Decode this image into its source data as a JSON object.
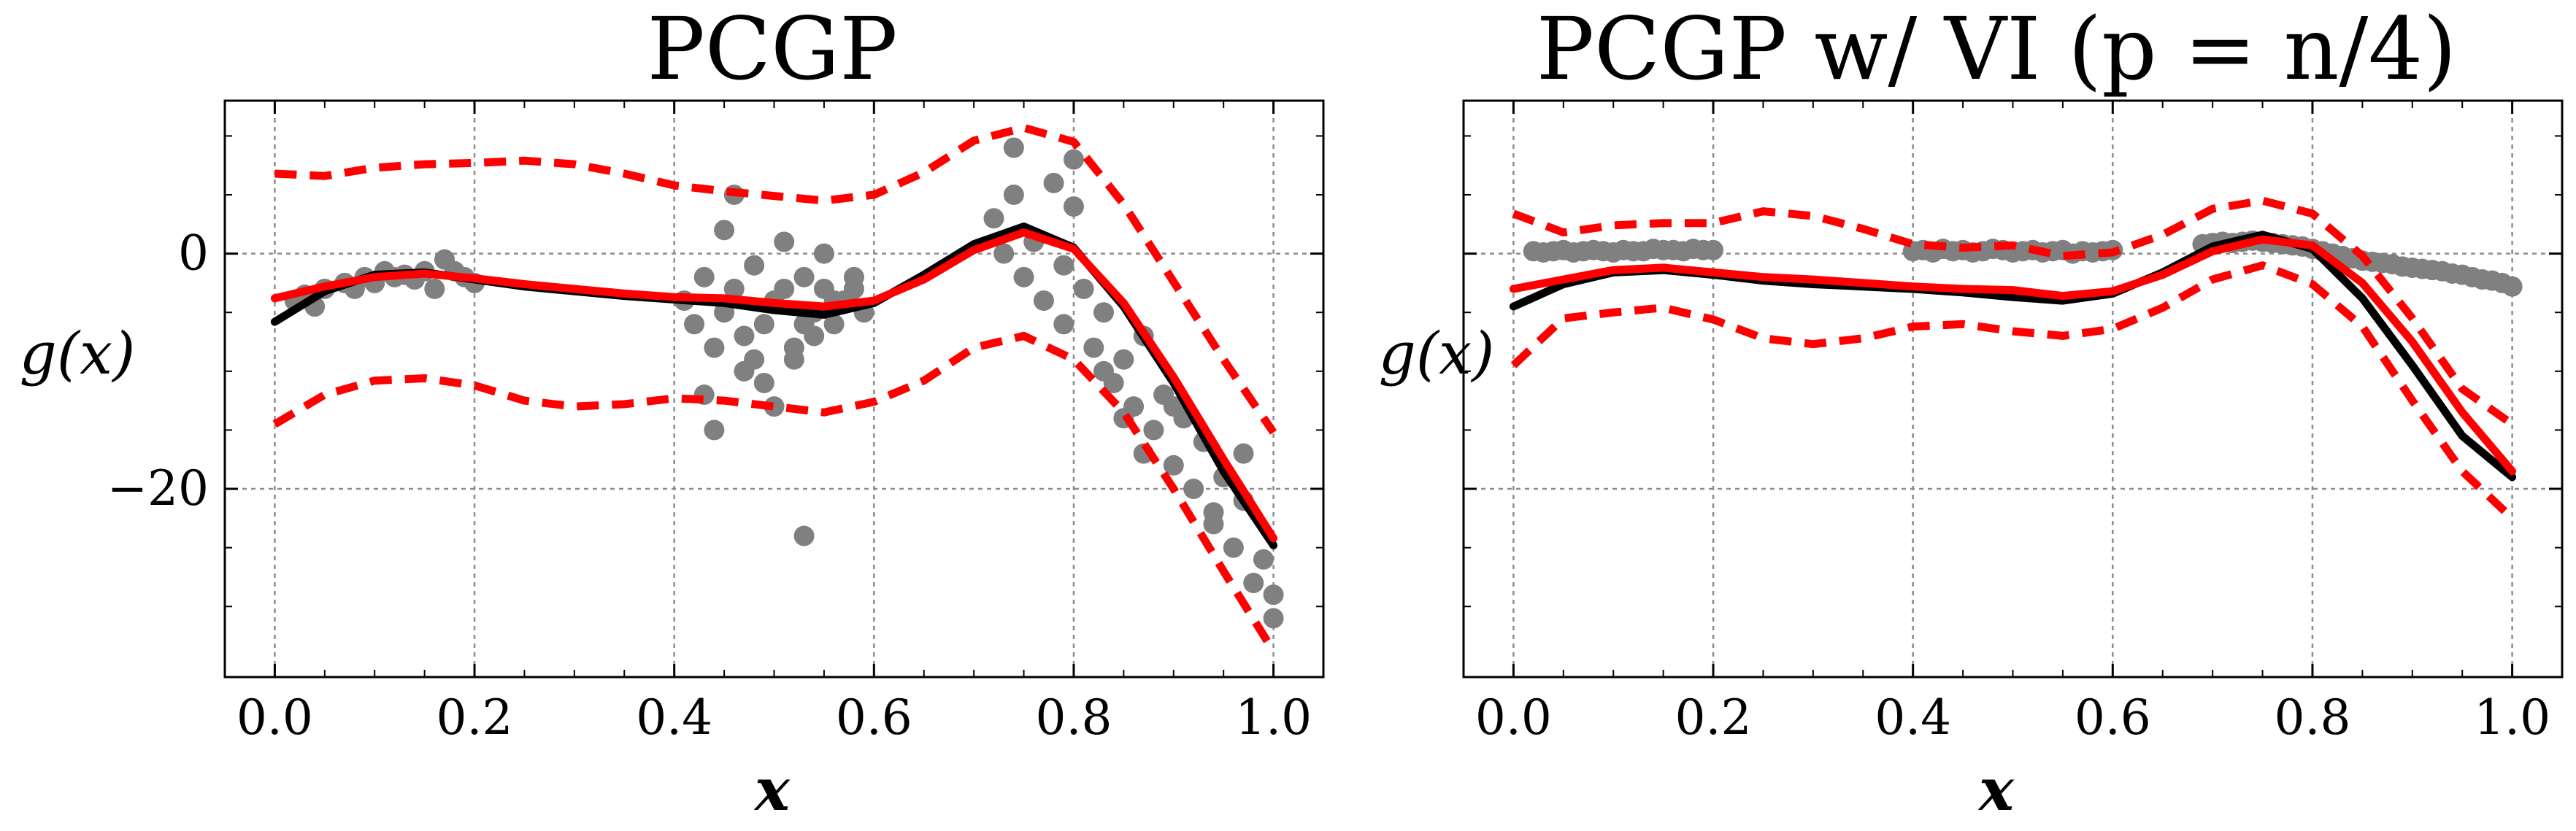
{
  "chart_data": [
    {
      "type": "line",
      "title": "PCGP",
      "xlabel": "x",
      "ylabel": "g(x)",
      "xlim": [
        -0.05,
        1.05
      ],
      "ylim": [
        -36,
        13
      ],
      "xticks": [
        "0.0",
        "0.2",
        "0.4",
        "0.6",
        "0.8",
        "1.0"
      ],
      "yticks": [
        "0",
        "−20"
      ],
      "grid": true,
      "series": [
        {
          "style": "scatter",
          "color": "#808080",
          "x": [
            0.02,
            0.03,
            0.04,
            0.05,
            0.07,
            0.08,
            0.09,
            0.1,
            0.11,
            0.12,
            0.13,
            0.14,
            0.15,
            0.16,
            0.17,
            0.18,
            0.19,
            0.2,
            0.41,
            0.42,
            0.43,
            0.44,
            0.45,
            0.46,
            0.47,
            0.48,
            0.49,
            0.5,
            0.51,
            0.52,
            0.53,
            0.54,
            0.55,
            0.56,
            0.57,
            0.58,
            0.59,
            0.43,
            0.45,
            0.47,
            0.5,
            0.52,
            0.55,
            0.58,
            0.46,
            0.49,
            0.53,
            0.51,
            0.44,
            0.56,
            0.48,
            0.54,
            0.53,
            0.72,
            0.73,
            0.74,
            0.75,
            0.76,
            0.77,
            0.78,
            0.79,
            0.8,
            0.81,
            0.82,
            0.83,
            0.84,
            0.85,
            0.86,
            0.87,
            0.88,
            0.89,
            0.9,
            0.91,
            0.92,
            0.93,
            0.94,
            0.95,
            0.96,
            0.97,
            0.98,
            0.99,
            1.0,
            0.74,
            0.79,
            0.83,
            0.87,
            0.9,
            0.94,
            0.97,
            1.0,
            0.8,
            0.85
          ],
          "y": [
            -4,
            -3.5,
            -4.5,
            -3,
            -2.5,
            -3,
            -2,
            -2.5,
            -1.5,
            -2,
            -1.8,
            -2.2,
            -1.5,
            -3,
            -0.5,
            -1.5,
            -2,
            -2.5,
            -4,
            -6,
            -2,
            -8,
            -5,
            -3,
            -7,
            -1,
            -6,
            -4,
            -3,
            -9,
            -2,
            -5,
            -3,
            -6,
            -4,
            -2,
            -5,
            -12,
            2,
            -10,
            -13,
            -8,
            0,
            -3,
            5,
            -11,
            -6,
            1,
            -15,
            -4,
            -9,
            -7,
            -24,
            3,
            0,
            5,
            -2,
            1,
            -4,
            6,
            -6,
            8,
            -3,
            -8,
            -5,
            -11,
            -9,
            -13,
            -7,
            -15,
            -12,
            -18,
            -14,
            -20,
            -16,
            -22,
            -19,
            -25,
            -21,
            -28,
            -26,
            -31,
            9,
            -1,
            -10,
            -17,
            -13,
            -23,
            -17,
            -29,
            4,
            -14
          ]
        },
        {
          "style": "line",
          "color": "#000000",
          "x": [
            0.0,
            0.05,
            0.1,
            0.15,
            0.2,
            0.25,
            0.3,
            0.35,
            0.4,
            0.45,
            0.5,
            0.55,
            0.6,
            0.65,
            0.7,
            0.75,
            0.8,
            0.85,
            0.9,
            0.95,
            1.0
          ],
          "y": [
            -5.8,
            -3.2,
            -1.8,
            -1.6,
            -2.2,
            -2.8,
            -3.2,
            -3.6,
            -3.9,
            -4.2,
            -4.8,
            -5.2,
            -4.2,
            -1.8,
            0.8,
            2.3,
            0.5,
            -4.5,
            -11,
            -18.5,
            -24.8
          ]
        },
        {
          "style": "line",
          "color": "#ff0000",
          "x": [
            0.0,
            0.05,
            0.1,
            0.15,
            0.2,
            0.25,
            0.3,
            0.35,
            0.4,
            0.45,
            0.5,
            0.55,
            0.6,
            0.65,
            0.7,
            0.75,
            0.8,
            0.85,
            0.9,
            0.95,
            1.0
          ],
          "y": [
            -3.8,
            -2.8,
            -2.0,
            -1.7,
            -2.1,
            -2.6,
            -3.0,
            -3.4,
            -3.7,
            -3.8,
            -4.2,
            -4.5,
            -4.0,
            -2.2,
            0.3,
            1.8,
            0.4,
            -4.2,
            -10.5,
            -17.5,
            -24.2
          ]
        },
        {
          "style": "dashed",
          "color": "#ff0000",
          "x": [
            0.0,
            0.05,
            0.1,
            0.15,
            0.2,
            0.25,
            0.3,
            0.35,
            0.4,
            0.45,
            0.5,
            0.55,
            0.6,
            0.65,
            0.7,
            0.75,
            0.8,
            0.85,
            0.9,
            0.95,
            1.0
          ],
          "y": [
            6.8,
            6.6,
            7.3,
            7.6,
            7.7,
            7.9,
            7.6,
            6.8,
            5.8,
            5.3,
            4.9,
            4.5,
            5.0,
            6.9,
            9.6,
            10.7,
            9.5,
            4.2,
            -2.4,
            -9.0,
            -15.2
          ]
        },
        {
          "style": "dashed",
          "color": "#ff0000",
          "x": [
            0.0,
            0.05,
            0.1,
            0.15,
            0.2,
            0.25,
            0.3,
            0.35,
            0.4,
            0.45,
            0.5,
            0.55,
            0.6,
            0.65,
            0.7,
            0.75,
            0.8,
            0.85,
            0.9,
            0.95,
            1.0
          ],
          "y": [
            -14.5,
            -12.0,
            -10.8,
            -10.6,
            -11.2,
            -12.5,
            -13.0,
            -12.8,
            -12.3,
            -12.5,
            -13.0,
            -13.5,
            -12.6,
            -10.8,
            -8.0,
            -7.0,
            -9.0,
            -13.5,
            -20.0,
            -27.0,
            -33.8
          ]
        }
      ]
    },
    {
      "type": "line",
      "title": "PCGP w/ VI (p = n/4)",
      "xlabel": "x",
      "ylabel": "g(x)",
      "xlim": [
        -0.05,
        1.05
      ],
      "ylim": [
        -36,
        13
      ],
      "xticks": [
        "0.0",
        "0.2",
        "0.4",
        "0.6",
        "0.8",
        "1.0"
      ],
      "yticks": [],
      "grid": true,
      "series": [
        {
          "style": "scatter",
          "color": "#808080",
          "x": [
            0.02,
            0.03,
            0.04,
            0.05,
            0.06,
            0.07,
            0.08,
            0.09,
            0.1,
            0.11,
            0.12,
            0.13,
            0.14,
            0.15,
            0.16,
            0.17,
            0.18,
            0.19,
            0.2,
            0.4,
            0.41,
            0.42,
            0.43,
            0.44,
            0.45,
            0.46,
            0.47,
            0.48,
            0.49,
            0.5,
            0.51,
            0.52,
            0.53,
            0.54,
            0.55,
            0.56,
            0.57,
            0.58,
            0.59,
            0.6,
            0.69,
            0.7,
            0.71,
            0.72,
            0.73,
            0.74,
            0.75,
            0.76,
            0.77,
            0.78,
            0.79,
            0.8,
            0.81,
            0.82,
            0.83,
            0.84,
            0.85,
            0.86,
            0.87,
            0.88,
            0.89,
            0.9,
            0.91,
            0.92,
            0.93,
            0.94,
            0.95,
            0.96,
            0.97,
            0.98,
            0.99,
            1.0
          ],
          "y": [
            0.2,
            0.1,
            0.2,
            0.3,
            0.1,
            0.2,
            0.3,
            0.2,
            0.1,
            0.3,
            0.2,
            0.2,
            0.4,
            0.3,
            0.3,
            0.2,
            0.4,
            0.3,
            0.3,
            0.2,
            0.3,
            0.1,
            0.4,
            0.2,
            0.3,
            0.1,
            0.2,
            0.4,
            0.3,
            0.1,
            0.2,
            0.3,
            0.1,
            0.2,
            0.3,
            0.0,
            0.2,
            0.1,
            0.2,
            0.3,
            0.8,
            0.9,
            1.0,
            0.9,
            1.0,
            1.1,
            1.0,
            0.9,
            0.8,
            0.7,
            0.6,
            0.4,
            0.2,
            0.0,
            -0.2,
            -0.4,
            -0.6,
            -0.7,
            -0.8,
            -0.9,
            -1.1,
            -1.2,
            -1.3,
            -1.4,
            -1.5,
            -1.7,
            -1.8,
            -2.0,
            -2.2,
            -2.3,
            -2.5,
            -2.8
          ]
        },
        {
          "style": "line",
          "color": "#000000",
          "x": [
            0.0,
            0.05,
            0.1,
            0.15,
            0.2,
            0.25,
            0.3,
            0.35,
            0.4,
            0.45,
            0.5,
            0.55,
            0.6,
            0.65,
            0.7,
            0.75,
            0.8,
            0.85,
            0.9,
            0.95,
            1.0
          ],
          "y": [
            -4.5,
            -2.6,
            -1.6,
            -1.4,
            -1.8,
            -2.3,
            -2.6,
            -2.8,
            -3.0,
            -3.3,
            -3.7,
            -4.0,
            -3.4,
            -1.6,
            0.6,
            1.6,
            0.4,
            -3.8,
            -9.5,
            -15.5,
            -19.0
          ]
        },
        {
          "style": "line",
          "color": "#ff0000",
          "x": [
            0.0,
            0.05,
            0.1,
            0.15,
            0.2,
            0.25,
            0.3,
            0.35,
            0.4,
            0.45,
            0.5,
            0.55,
            0.6,
            0.65,
            0.7,
            0.75,
            0.8,
            0.85,
            0.9,
            0.95,
            1.0
          ],
          "y": [
            -3.0,
            -2.2,
            -1.4,
            -1.2,
            -1.6,
            -2.0,
            -2.2,
            -2.5,
            -2.8,
            -3.0,
            -3.1,
            -3.6,
            -3.2,
            -1.8,
            0.2,
            1.2,
            0.7,
            -2.5,
            -7.5,
            -13.5,
            -18.5
          ]
        },
        {
          "style": "dashed",
          "color": "#ff0000",
          "x": [
            0.0,
            0.05,
            0.1,
            0.15,
            0.2,
            0.25,
            0.3,
            0.35,
            0.4,
            0.45,
            0.5,
            0.55,
            0.6,
            0.65,
            0.7,
            0.75,
            0.8,
            0.85,
            0.9,
            0.95,
            1.0
          ],
          "y": [
            3.4,
            1.8,
            2.4,
            2.6,
            2.6,
            3.6,
            3.2,
            2.1,
            0.8,
            0.5,
            0.7,
            -0.2,
            0.1,
            1.6,
            3.8,
            4.5,
            3.4,
            -0.2,
            -5.5,
            -11.5,
            -14.5
          ]
        },
        {
          "style": "dashed",
          "color": "#ff0000",
          "x": [
            0.0,
            0.05,
            0.1,
            0.15,
            0.2,
            0.25,
            0.3,
            0.35,
            0.4,
            0.45,
            0.5,
            0.55,
            0.6,
            0.65,
            0.7,
            0.75,
            0.8,
            0.85,
            0.9,
            0.95,
            1.0
          ],
          "y": [
            -9.5,
            -5.5,
            -5.0,
            -4.6,
            -5.6,
            -7.2,
            -7.7,
            -7.2,
            -6.2,
            -6.0,
            -6.6,
            -7.0,
            -6.4,
            -4.6,
            -2.2,
            -1.0,
            -2.6,
            -6.2,
            -12.5,
            -18.5,
            -22.5
          ]
        }
      ]
    }
  ]
}
